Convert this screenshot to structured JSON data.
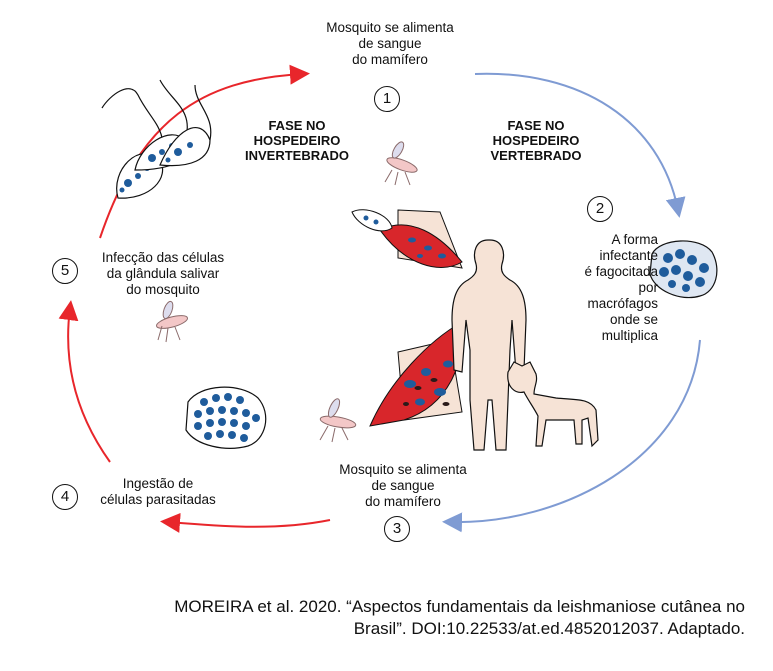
{
  "steps": [
    {
      "num": "1",
      "lines": [
        "Mosquito se alimenta",
        "de sangue",
        "do mamífero"
      ]
    },
    {
      "num": "2",
      "lines": [
        "A forma",
        "infectante",
        "é fagocitada",
        "por",
        "macrófagos",
        "onde se",
        "multiplica"
      ]
    },
    {
      "num": "3",
      "lines": [
        "Mosquito se alimenta",
        "de sangue",
        "do mamífero"
      ]
    },
    {
      "num": "4",
      "lines": [
        "Ingestão de",
        "células parasitadas"
      ]
    },
    {
      "num": "5",
      "lines": [
        "Infecção das células",
        "da glândula salivar",
        "do mosquito"
      ]
    }
  ],
  "phases": {
    "invertebrate": [
      "FASE NO",
      "HOSPEDEIRO",
      "INVERTEBRADO"
    ],
    "vertebrate": [
      "FASE NO",
      "HOSPEDEIRO",
      "VERTEBRADO"
    ]
  },
  "caption": [
    "MOREIRA et al. 2020. “Aspectos fundamentais da leishmaniose cutânea no",
    "Brasil”. DOI:10.22533/at.ed.4852012037. Adaptado."
  ],
  "colors": {
    "invertebrate_arrow": "#e8262b",
    "vertebrate_arrow": "#7f9bd3",
    "parasite": "#1f5c9c",
    "blood": "#d8262b",
    "skin": "#f6e3d6"
  }
}
